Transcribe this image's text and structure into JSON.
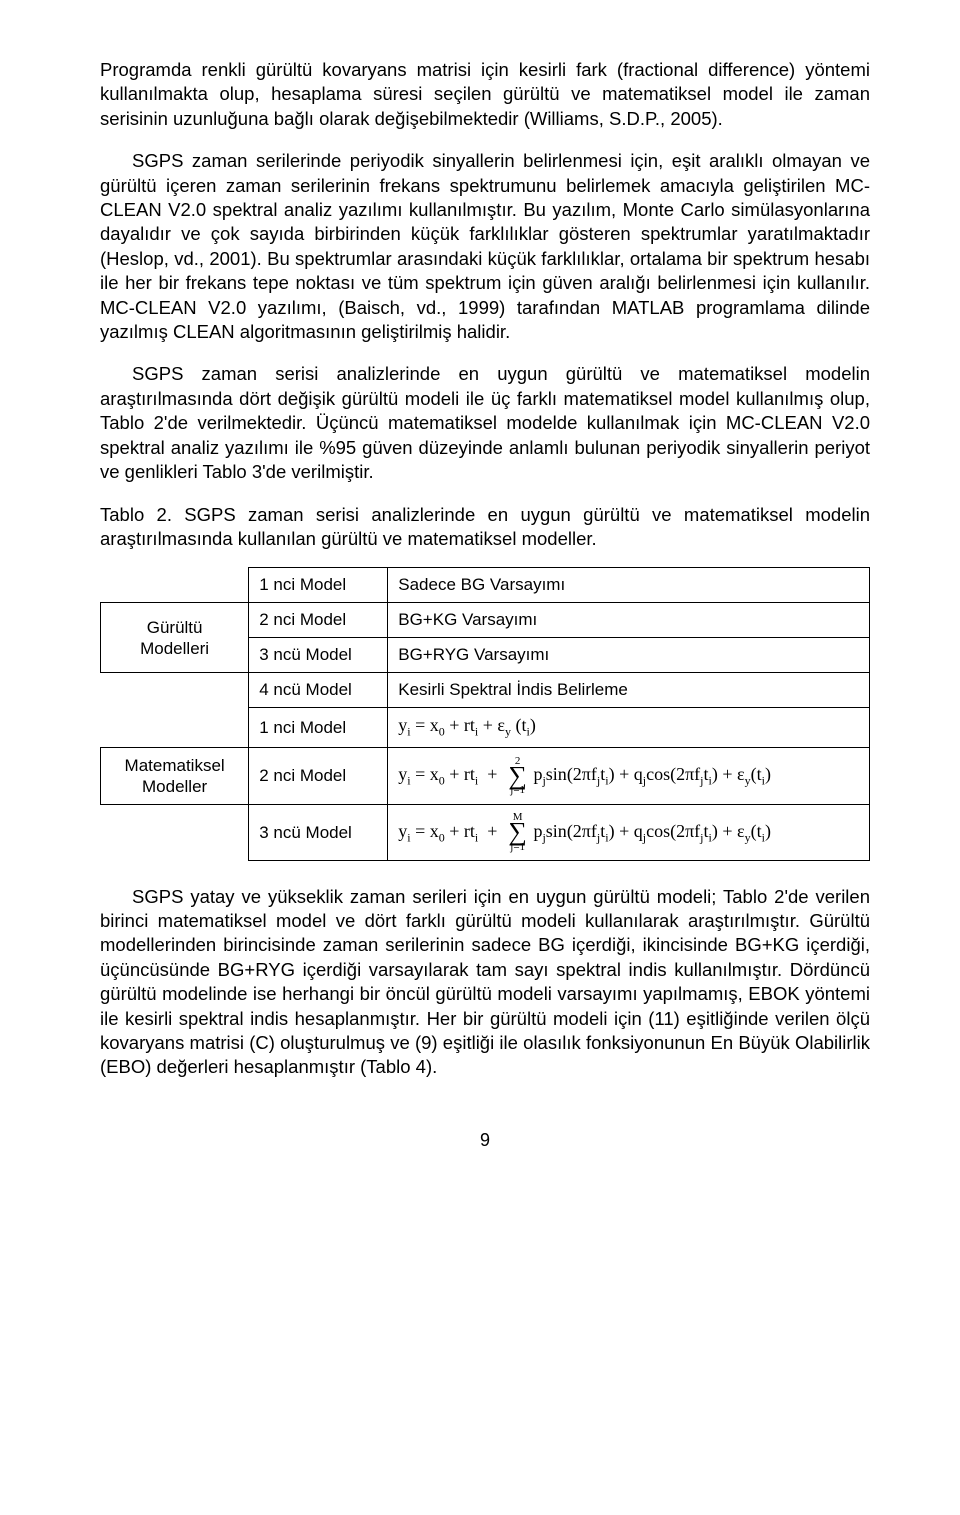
{
  "fontSizes": {
    "body": 18.5,
    "table": 17,
    "formula": 18
  },
  "colors": {
    "text": "#000000",
    "background": "#ffffff",
    "border": "#000000"
  },
  "para1": "Programda renkli gürültü kovaryans matrisi için kesirli fark (fractional difference) yöntemi kullanılmakta olup, hesaplama süresi seçilen gürültü ve matematiksel model ile zaman serisinin uzunluğuna bağlı olarak değişebilmektedir (Williams, S.D.P., 2005).",
  "para2": "SGPS zaman serilerinde periyodik sinyallerin belirlenmesi için, eşit aralıklı olmayan ve gürültü içeren zaman serilerinin frekans spektrumunu belirlemek amacıyla geliştirilen MC-CLEAN V2.0 spektral analiz yazılımı kullanılmıştır. Bu yazılım, Monte Carlo simülasyonlarına dayalıdır ve çok sayıda birbirinden küçük farklılıklar gösteren spektrumlar yaratılmaktadır (Heslop, vd., 2001). Bu spektrumlar arasındaki küçük farklılıklar, ortalama bir spektrum hesabı ile her bir frekans tepe noktası ve tüm spektrum için güven aralığı belirlenmesi için kullanılır. MC-CLEAN V2.0 yazılımı, (Baisch, vd., 1999) tarafından MATLAB programlama dilinde yazılmış CLEAN algoritmasının geliştirilmiş halidir.",
  "para3": "SGPS zaman serisi analizlerinde en uygun gürültü ve matematiksel modelin araştırılmasında dört değişik gürültü modeli ile üç farklı matematiksel model kullanılmış olup, Tablo 2'de verilmektedir. Üçüncü matematiksel modelde kullanılmak için MC-CLEAN V2.0 spektral analiz yazılımı ile %95 güven düzeyinde anlamlı bulunan periyodik sinyallerin periyot ve genlikleri Tablo 3'de verilmiştir.",
  "tableCaption": "Tablo 2. SGPS zaman serisi analizlerinde en uygun gürültü ve matematiksel modelin araştırılmasında kullanılan gürültü ve matematiksel modeller.",
  "table": {
    "rowhead1": "Gürültü\nModelleri",
    "rowhead2": "Matematiksel\nModeller",
    "rows": [
      [
        "1 nci Model",
        "Sadece BG Varsayımı"
      ],
      [
        "2 nci Model",
        "BG+KG Varsayımı"
      ],
      [
        "3 ncü Model",
        "BG+RYG Varsayımı"
      ],
      [
        "4 ncü Model",
        "Kesirli Spektral İndis Belirleme"
      ],
      [
        "1 nci Model",
        "FORMULA1"
      ],
      [
        "2 nci Model",
        "FORMULA2"
      ],
      [
        "3 ncü Model",
        "FORMULA3"
      ]
    ]
  },
  "formulas": {
    "f1": {
      "prefix": "y",
      "prefixSub": "i",
      "eq": " = x",
      "x0Sub": "0",
      "plus1": " + rt",
      "rtSub": "i",
      "plus2": " + ε",
      "epsSub": "y",
      "open": " (t",
      "tSub": "i",
      "close": ")"
    },
    "f2": {
      "sumTop": "2",
      "sumBot": "j=1"
    },
    "f3": {
      "sumTop": "M",
      "sumBot": "j=1"
    },
    "sumBody": {
      "p": "p",
      "pSub": "j",
      "sin": "sin",
      "open": "(2πf",
      "fSub": "j",
      "t": "t",
      "tSub": "i",
      "close": ")",
      "q": "q",
      "qSub": "j",
      "cos": "cos",
      "eps": "ε",
      "epsSub": "y",
      "openT": "(t",
      "closeT": ")"
    }
  },
  "para4": "SGPS yatay ve yükseklik zaman serileri için en uygun gürültü modeli; Tablo 2'de verilen birinci matematiksel model ve dört farklı gürültü modeli kullanılarak araştırılmıştır. Gürültü modellerinden birincisinde zaman serilerinin sadece BG içerdiği, ikincisinde BG+KG içerdiği, üçüncüsünde BG+RYG içerdiği varsayılarak tam sayı spektral indis kullanılmıştır. Dördüncü gürültü modelinde ise herhangi bir öncül gürültü modeli varsayımı yapılmamış, EBOK yöntemi ile kesirli spektral indis hesaplanmıştır. Her bir gürültü modeli için (11) eşitliğinde verilen ölçü kovaryans matrisi (C) oluşturulmuş ve (9) eşitliği ile olasılık fonksiyonunun En Büyük Olabilirlik (EBO) değerleri hesaplanmıştır (Tablo 4).",
  "pageNumber": "9"
}
